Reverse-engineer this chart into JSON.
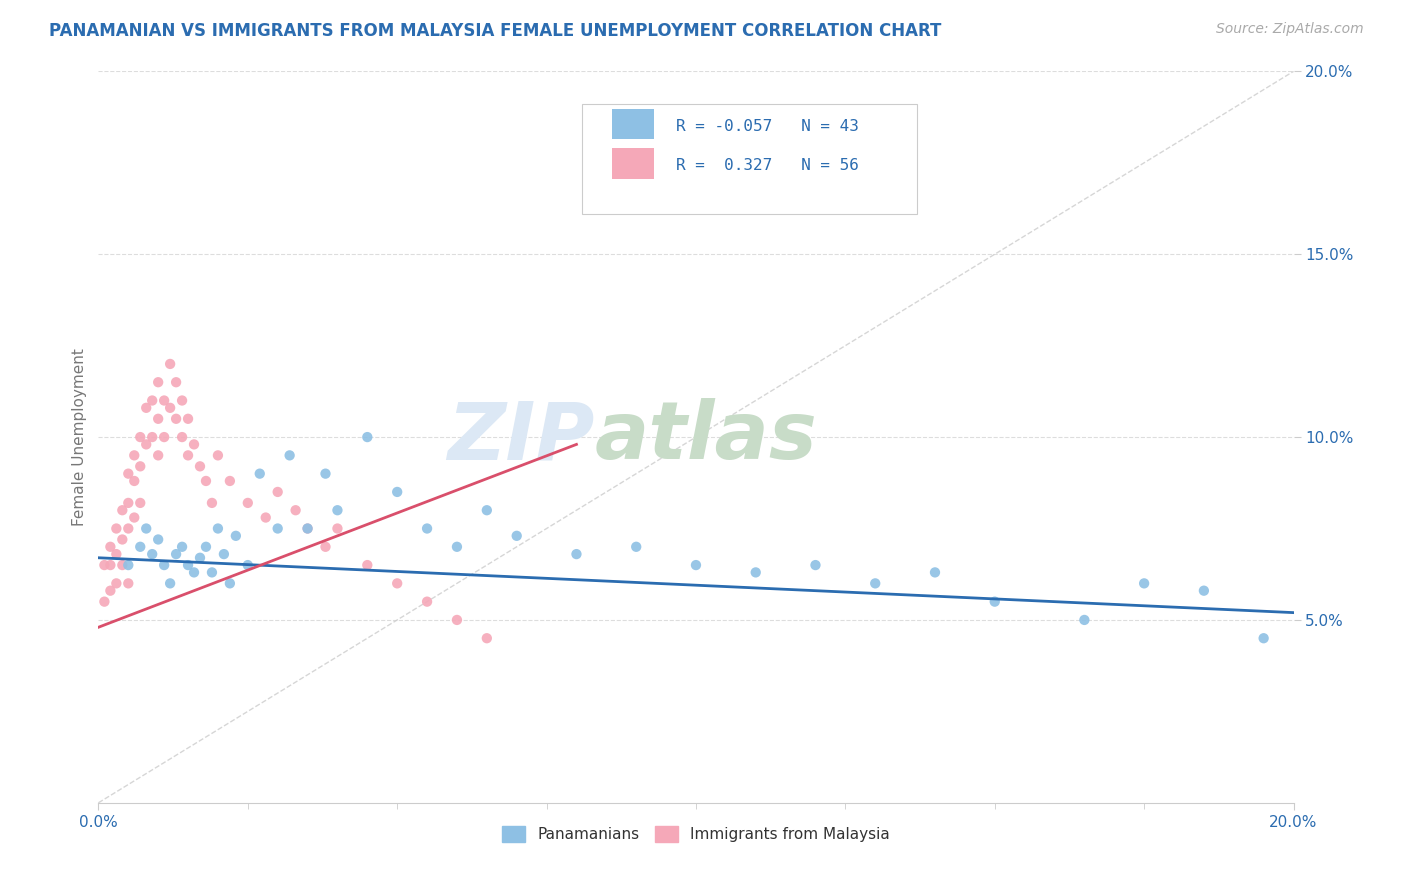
{
  "title": "PANAMANIAN VS IMMIGRANTS FROM MALAYSIA FEMALE UNEMPLOYMENT CORRELATION CHART",
  "source_text": "Source: ZipAtlas.com",
  "ylabel": "Female Unemployment",
  "xmin": 0.0,
  "xmax": 0.2,
  "ymin": 0.0,
  "ymax": 0.2,
  "blue_color": "#8ec0e4",
  "pink_color": "#f5a8b8",
  "blue_line_color": "#2b6cb0",
  "pink_line_color": "#d94f6b",
  "diag_line_color": "#cccccc",
  "title_color": "#2b6cb0",
  "axis_label_color": "#2b6cb0",
  "source_color": "#aaaaaa",
  "watermark_zip_color": "#dce8f5",
  "watermark_atlas_color": "#c8dcc8",
  "blue_x": [
    0.005,
    0.007,
    0.008,
    0.009,
    0.01,
    0.011,
    0.012,
    0.013,
    0.014,
    0.015,
    0.016,
    0.017,
    0.018,
    0.019,
    0.02,
    0.021,
    0.022,
    0.023,
    0.025,
    0.027,
    0.03,
    0.032,
    0.035,
    0.038,
    0.04,
    0.045,
    0.05,
    0.055,
    0.06,
    0.065,
    0.07,
    0.08,
    0.09,
    0.1,
    0.11,
    0.12,
    0.13,
    0.14,
    0.15,
    0.165,
    0.175,
    0.185,
    0.195
  ],
  "blue_y": [
    0.065,
    0.07,
    0.075,
    0.068,
    0.072,
    0.065,
    0.06,
    0.068,
    0.07,
    0.065,
    0.063,
    0.067,
    0.07,
    0.063,
    0.075,
    0.068,
    0.06,
    0.073,
    0.065,
    0.09,
    0.075,
    0.095,
    0.075,
    0.09,
    0.08,
    0.1,
    0.085,
    0.075,
    0.07,
    0.08,
    0.073,
    0.068,
    0.07,
    0.065,
    0.063,
    0.065,
    0.06,
    0.063,
    0.055,
    0.05,
    0.06,
    0.058,
    0.045
  ],
  "pink_x": [
    0.001,
    0.001,
    0.002,
    0.002,
    0.002,
    0.003,
    0.003,
    0.003,
    0.004,
    0.004,
    0.004,
    0.005,
    0.005,
    0.005,
    0.005,
    0.006,
    0.006,
    0.006,
    0.007,
    0.007,
    0.007,
    0.008,
    0.008,
    0.009,
    0.009,
    0.01,
    0.01,
    0.01,
    0.011,
    0.011,
    0.012,
    0.012,
    0.013,
    0.013,
    0.014,
    0.014,
    0.015,
    0.015,
    0.016,
    0.017,
    0.018,
    0.019,
    0.02,
    0.022,
    0.025,
    0.028,
    0.03,
    0.033,
    0.035,
    0.038,
    0.04,
    0.045,
    0.05,
    0.055,
    0.06,
    0.065
  ],
  "pink_y": [
    0.065,
    0.055,
    0.07,
    0.065,
    0.058,
    0.075,
    0.068,
    0.06,
    0.08,
    0.072,
    0.065,
    0.09,
    0.082,
    0.075,
    0.06,
    0.095,
    0.088,
    0.078,
    0.1,
    0.092,
    0.082,
    0.108,
    0.098,
    0.11,
    0.1,
    0.115,
    0.105,
    0.095,
    0.11,
    0.1,
    0.12,
    0.108,
    0.115,
    0.105,
    0.11,
    0.1,
    0.105,
    0.095,
    0.098,
    0.092,
    0.088,
    0.082,
    0.095,
    0.088,
    0.082,
    0.078,
    0.085,
    0.08,
    0.075,
    0.07,
    0.075,
    0.065,
    0.06,
    0.055,
    0.05,
    0.045
  ],
  "blue_trend_x": [
    0.0,
    0.2
  ],
  "blue_trend_y": [
    0.067,
    0.052
  ],
  "pink_trend_x": [
    0.0,
    0.08
  ],
  "pink_trend_y": [
    0.048,
    0.098
  ]
}
